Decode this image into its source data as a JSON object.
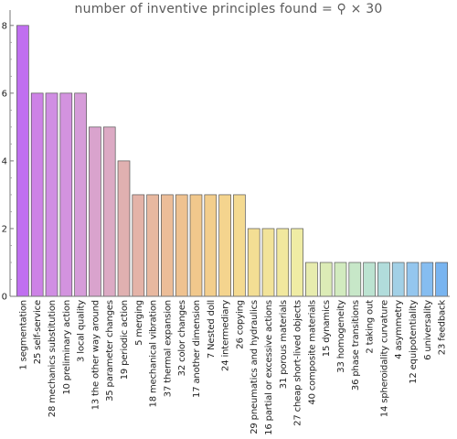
{
  "chart_data": {
    "type": "bar",
    "title": "number of inventive principles found = ⚲ × 30",
    "xlabel": "",
    "ylabel": "",
    "ylim": [
      0,
      8.4
    ],
    "yticks": [
      0,
      2,
      4,
      6,
      8
    ],
    "grid": false,
    "categories": [
      "1 segmentation",
      "25 self-service",
      "28 mechanics substitution",
      "10 preliminary action",
      "3 local quality",
      "13 the other way around",
      "35 parameter changes",
      "19 periodic action",
      "5 merging",
      "18 mechanical vibration",
      "37 thermal expansion",
      "32 color changes",
      "17 another dimension",
      "7 Nested doll",
      "24 intermediary",
      "26 copying",
      "29 pneumatics and hydraulics",
      "16 partial or excessive actions",
      "31 porous materials",
      "27 cheap short-lived objects",
      "40 composite materials",
      "15 dynamics",
      "33 homogeneity",
      "36 phase transitions",
      "2 taking out",
      "14 spheroidality curvature",
      "4 asymmetry",
      "12 equipotentiality",
      "6 universality",
      "23 feedback"
    ],
    "values": [
      8,
      6,
      6,
      6,
      6,
      5,
      5,
      4,
      3,
      3,
      3,
      3,
      3,
      3,
      3,
      3,
      2,
      2,
      2,
      2,
      1,
      1,
      1,
      1,
      1,
      1,
      1,
      1,
      1,
      1
    ],
    "colors": [
      "#c06ff0",
      "#cd82e6",
      "#d08ee3",
      "#d393df",
      "#d69cd9",
      "#d9a3cd",
      "#dcaac4",
      "#e0b0b0",
      "#e4b3a8",
      "#e8b8a0",
      "#ecbd98",
      "#efc290",
      "#f1c88c",
      "#f3ce8c",
      "#f4d48e",
      "#f4da91",
      "#f3de94",
      "#f2e399",
      "#f1e89e",
      "#efeca4",
      "#e7ecae",
      "#dcecb6",
      "#d2ebbf",
      "#c7e7c8",
      "#bce3d1",
      "#b1dcdb",
      "#a2d0e6",
      "#94c6ee",
      "#86bdf0",
      "#78b4f0"
    ],
    "bar_stroke": "#555555"
  }
}
